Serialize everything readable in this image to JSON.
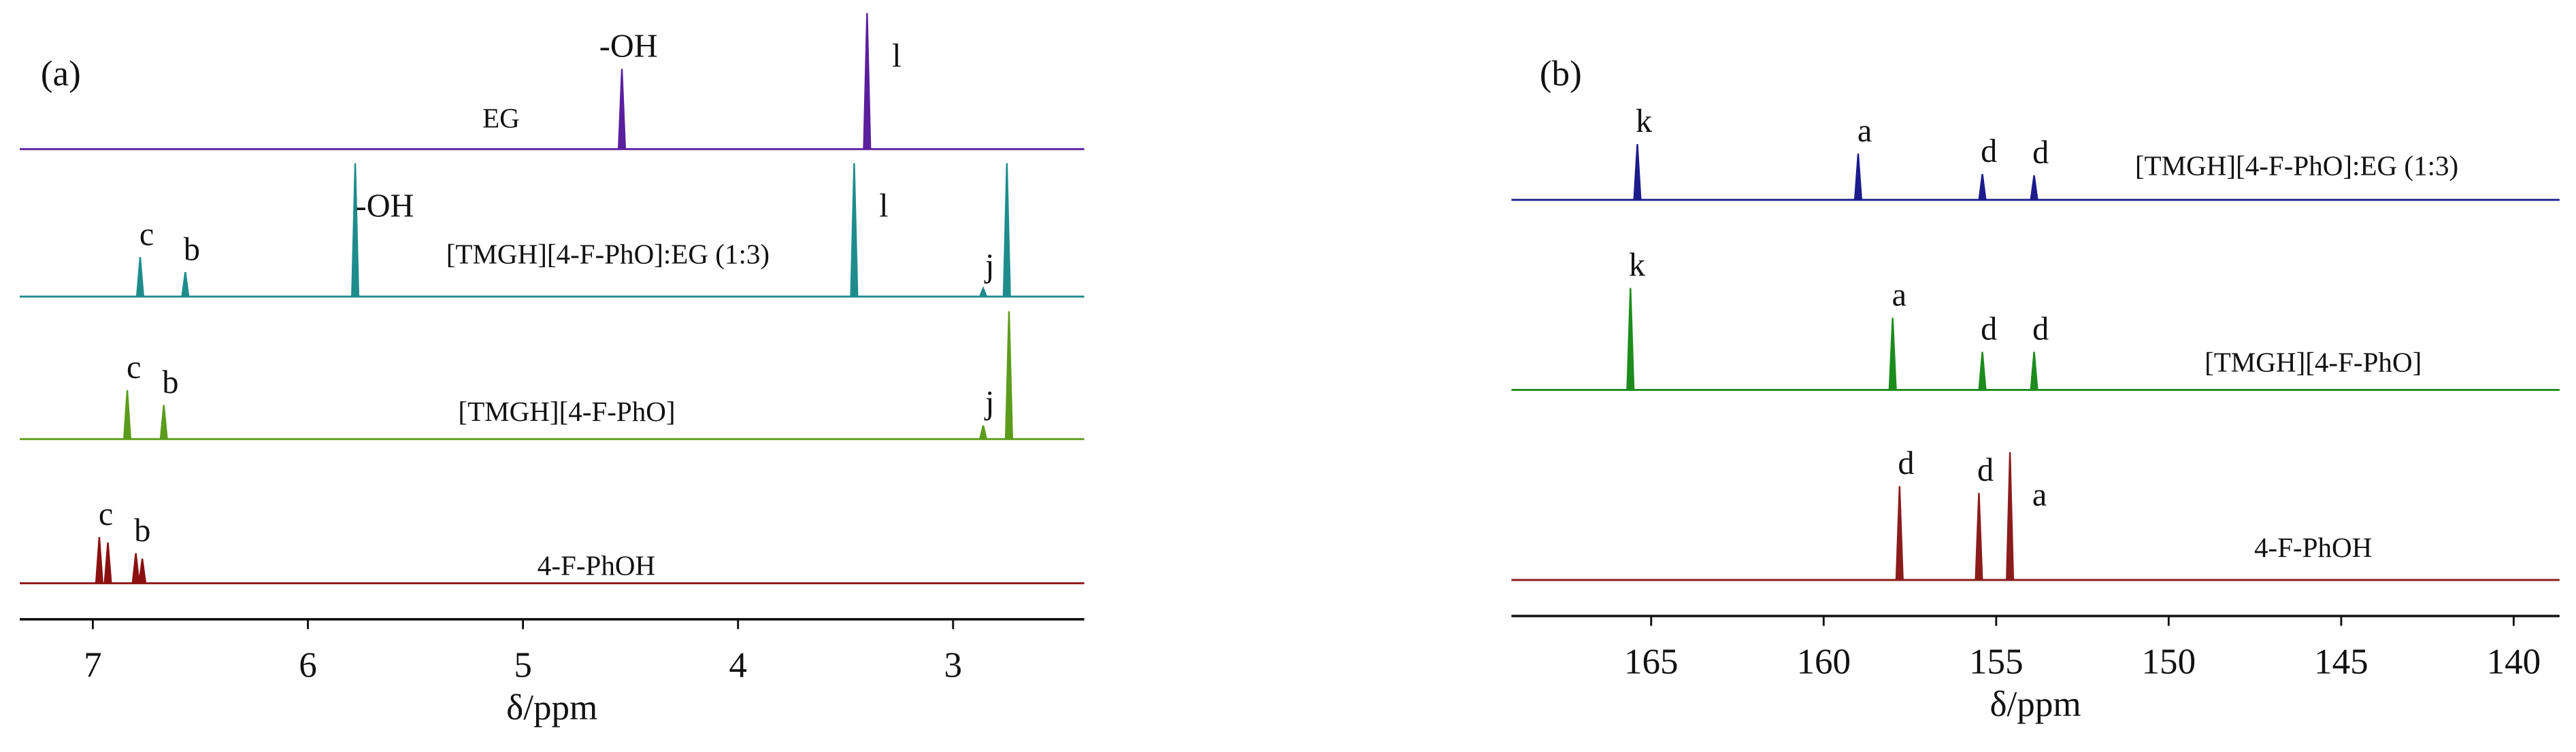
{
  "chart_data": [
    {
      "type": "spectrum",
      "title": "(a)",
      "xlabel": "δ/ppm",
      "xlim": [
        7.34,
        2.39
      ],
      "xticks": [
        7,
        6,
        5,
        4,
        3
      ],
      "series": [
        {
          "name": "EG",
          "color": "#5b1f9e",
          "x": [
            4.54,
            3.4
          ],
          "values": [
            59,
            100
          ],
          "peak_labels": [
            "-OH",
            "l"
          ]
        },
        {
          "name": "[TMGH][4-F-PhO]:EG (1:3)",
          "color": "#1f8c8c",
          "x": [
            6.78,
            6.57,
            5.78,
            3.46,
            2.86,
            2.75
          ],
          "values": [
            29,
            18,
            98,
            98,
            6,
            98
          ],
          "peak_labels": [
            "c",
            "b",
            "-OH",
            "l",
            "j",
            null
          ]
        },
        {
          "name": "[TMGH][4-F-PhO]",
          "color": "#5c9c1c",
          "x": [
            6.84,
            6.67,
            2.86,
            2.74
          ],
          "values": [
            36,
            25,
            10,
            94
          ],
          "peak_labels": [
            "c",
            "b",
            "j",
            null
          ]
        },
        {
          "name": "4-F-PhOH",
          "color": "#8b1010",
          "x": [
            6.97,
            6.93,
            6.8,
            6.77
          ],
          "values": [
            34,
            30,
            22,
            18
          ],
          "peak_labels": [
            "c",
            null,
            "b",
            null
          ]
        }
      ]
    },
    {
      "type": "spectrum",
      "title": "(b)",
      "xlabel": "δ/ppm",
      "xlim": [
        169.05,
        138.67
      ],
      "xticks": [
        165,
        160,
        155,
        150,
        145,
        140
      ],
      "series": [
        {
          "name": "[TMGH][4-F-PhO]:EG (1:3)",
          "color": "#1c1c8c",
          "x": [
            165.4,
            159.0,
            155.4,
            153.9
          ],
          "values": [
            41,
            34,
            19,
            18
          ],
          "peak_labels": [
            "k",
            "a",
            "d",
            "d"
          ]
        },
        {
          "name": "[TMGH][4-F-PhO]",
          "color": "#1c8c1c",
          "x": [
            165.6,
            158.0,
            155.4,
            153.9
          ],
          "values": [
            75,
            53,
            28,
            28
          ],
          "peak_labels": [
            "k",
            "a",
            "d",
            "d"
          ]
        },
        {
          "name": "4-F-PhOH",
          "color": "#8b1c1c",
          "x": [
            157.8,
            155.5,
            154.6
          ],
          "values": [
            69,
            64,
            94
          ],
          "peak_labels": [
            "d",
            "d",
            "a"
          ]
        }
      ]
    }
  ]
}
